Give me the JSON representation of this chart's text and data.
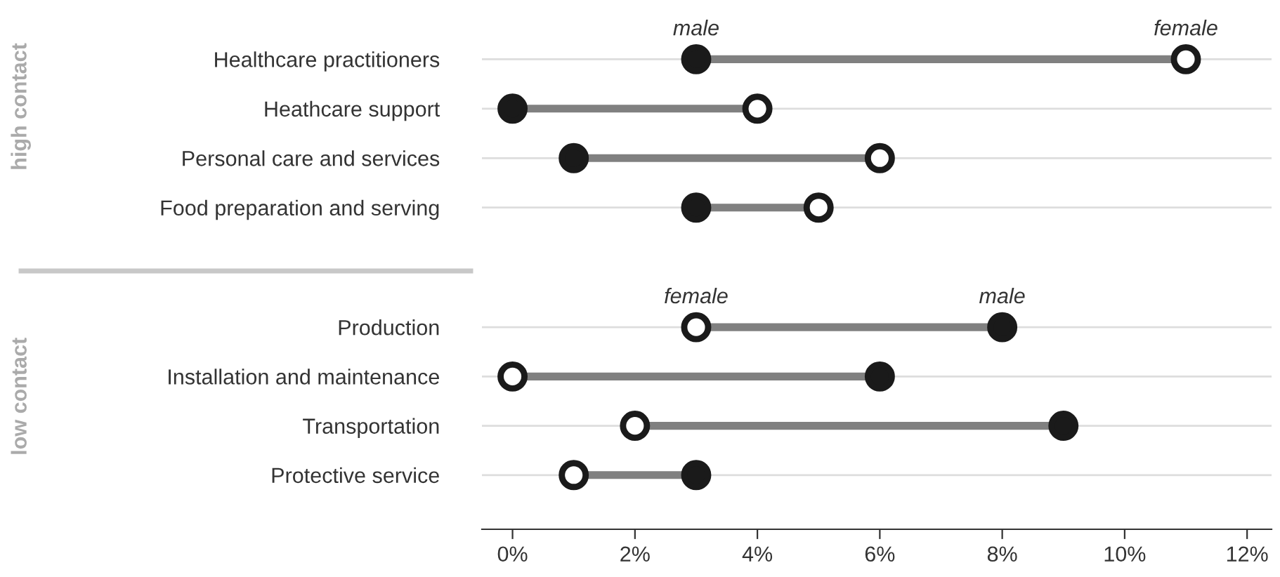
{
  "chart_data": [
    {
      "type": "scatter",
      "ylabel": "high contact",
      "categories": [
        "Healthcare practitioners",
        "Heathcare support",
        "Personal care and services",
        "Food preparation and serving"
      ],
      "series": [
        {
          "name": "male",
          "color": "#1a1a1a",
          "values": [
            3,
            0,
            1,
            3
          ]
        },
        {
          "name": "female",
          "color": "#ffffff",
          "values": [
            11,
            4,
            6,
            5
          ]
        }
      ],
      "xlim": [
        -0.5,
        12.4
      ],
      "orientation": "horizontal",
      "grid": "y",
      "marker": "circle",
      "tick_labels": "y",
      "legend": false
    },
    {
      "type": "scatter",
      "ylabel": "low contact",
      "categories": [
        "Production",
        "Installation and maintenance",
        "Transportation",
        "Protective service"
      ],
      "series": [
        {
          "name": "female",
          "color": "#ffffff",
          "values": [
            3,
            0,
            2,
            1
          ]
        },
        {
          "name": "male",
          "color": "#1a1a1a",
          "values": [
            8,
            6,
            9,
            3
          ]
        }
      ],
      "xlim": [
        -0.5,
        12.4
      ],
      "xticks": [
        {
          "value": 0,
          "label": "0%"
        },
        {
          "value": 2,
          "label": "2%"
        },
        {
          "value": 4,
          "label": "4%"
        },
        {
          "value": 6,
          "label": "6%"
        },
        {
          "value": 8,
          "label": "8%"
        },
        {
          "value": 10,
          "label": "10%"
        },
        {
          "value": 12,
          "label": "12%"
        }
      ],
      "orientation": "horizontal",
      "grid": "y",
      "marker": "circle",
      "legend": false
    }
  ]
}
